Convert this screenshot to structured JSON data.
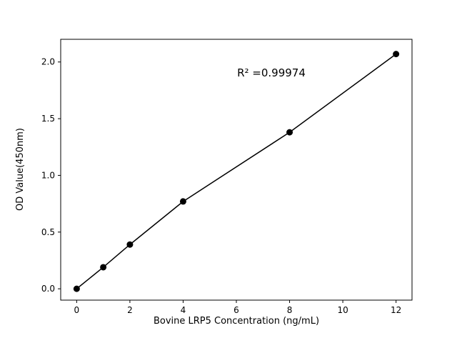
{
  "chart_data": {
    "type": "scatter",
    "title": "",
    "xlabel": "Bovine LRP5 Concentration (ng/mL)",
    "ylabel": "OD Value(450nm)",
    "annotation": "R² =0.99974",
    "x": [
      0,
      1,
      2,
      4,
      8,
      12
    ],
    "y": [
      0.0,
      0.19,
      0.39,
      0.77,
      1.38,
      2.07
    ],
    "xlim": [
      -0.6,
      12.6
    ],
    "ylim": [
      -0.1,
      2.2
    ],
    "x_ticks": [
      0,
      2,
      4,
      6,
      8,
      10,
      12
    ],
    "y_ticks": [
      0.0,
      0.5,
      1.0,
      1.5,
      2.0
    ],
    "grid": false,
    "legend_position": "none",
    "line_color": "#000000",
    "marker_color": "#000000",
    "axis_color": "#000000",
    "background_color": "#ffffff",
    "marker_style": "filled-circle",
    "fit_line": true
  }
}
